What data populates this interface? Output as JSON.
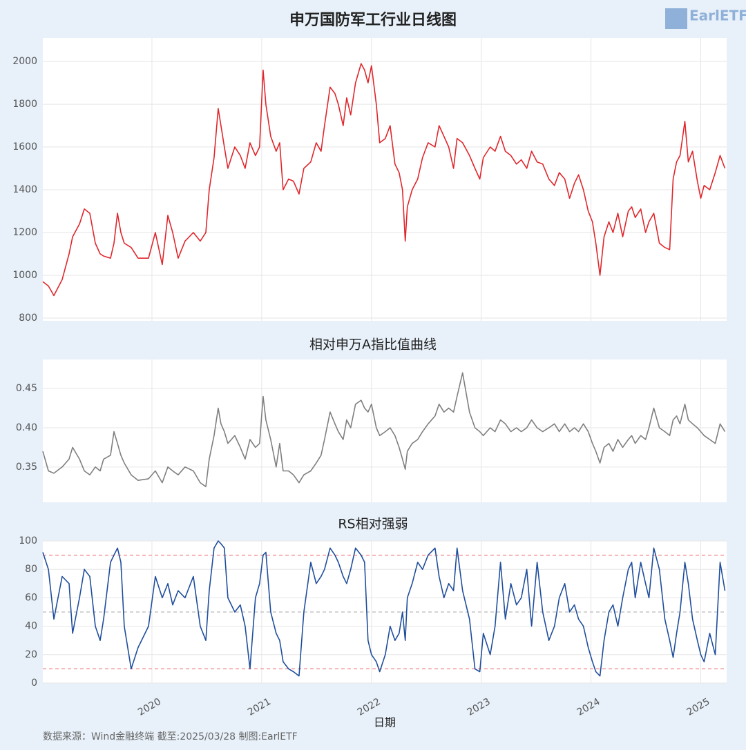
{
  "chart_data": [
    {
      "type": "line",
      "title": "申万国防军工行业日线图",
      "color": "#e0262b",
      "grid": true,
      "xlim": [
        2019.006,
        2025.236
      ],
      "xticks": [
        2020,
        2021,
        2022,
        2023,
        2024,
        2025
      ],
      "ylim": [
        787,
        2110
      ],
      "yticks": [
        800,
        1000,
        1200,
        1400,
        1600,
        1800,
        2000
      ],
      "x": [
        2019.006,
        2019.057,
        2019.107,
        2019.182,
        2019.245,
        2019.277,
        2019.34,
        2019.384,
        2019.434,
        2019.484,
        2019.528,
        2019.56,
        2019.623,
        2019.654,
        2019.686,
        2019.717,
        2019.748,
        2019.811,
        2019.874,
        2019.969,
        2020.031,
        2020.094,
        2020.145,
        2020.189,
        2020.239,
        2020.302,
        2020.377,
        2020.44,
        2020.491,
        2020.522,
        2020.566,
        2020.604,
        2020.629,
        2020.66,
        2020.692,
        2020.755,
        2020.805,
        2020.849,
        2020.893,
        2020.943,
        2020.981,
        2021.013,
        2021.038,
        2021.082,
        2021.132,
        2021.164,
        2021.195,
        2021.245,
        2021.289,
        2021.34,
        2021.384,
        2021.447,
        2021.497,
        2021.541,
        2021.572,
        2021.623,
        2021.667,
        2021.698,
        2021.742,
        2021.774,
        2021.811,
        2021.855,
        2021.906,
        2021.937,
        2021.969,
        2022.0,
        2022.044,
        2022.075,
        2022.126,
        2022.17,
        2022.214,
        2022.252,
        2022.283,
        2022.308,
        2022.327,
        2022.371,
        2022.421,
        2022.465,
        2022.516,
        2022.579,
        2022.616,
        2022.66,
        2022.704,
        2022.748,
        2022.78,
        2022.83,
        2022.893,
        2022.943,
        2022.987,
        2023.019,
        2023.082,
        2023.126,
        2023.176,
        2023.22,
        2023.27,
        2023.321,
        2023.365,
        2023.415,
        2023.459,
        2023.509,
        2023.56,
        2023.616,
        2023.667,
        2023.711,
        2023.761,
        2023.805,
        2023.849,
        2023.887,
        2023.931,
        2023.975,
        2024.013,
        2024.044,
        2024.082,
        2024.119,
        2024.163,
        2024.201,
        2024.245,
        2024.289,
        2024.34,
        2024.371,
        2024.403,
        2024.453,
        2024.497,
        2024.528,
        2024.572,
        2024.623,
        2024.673,
        2024.717,
        2024.748,
        2024.78,
        2024.811,
        2024.855,
        2024.887,
        2024.925,
        2024.969,
        2025.0,
        2025.031,
        2025.082,
        2025.132,
        2025.176,
        2025.22
      ],
      "values": [
        970,
        950,
        905,
        980,
        1100,
        1180,
        1240,
        1310,
        1290,
        1150,
        1100,
        1090,
        1080,
        1150,
        1290,
        1200,
        1150,
        1130,
        1080,
        1080,
        1200,
        1050,
        1280,
        1200,
        1080,
        1160,
        1200,
        1160,
        1200,
        1400,
        1550,
        1780,
        1700,
        1600,
        1500,
        1600,
        1560,
        1500,
        1620,
        1560,
        1600,
        1960,
        1800,
        1650,
        1580,
        1620,
        1400,
        1450,
        1440,
        1380,
        1500,
        1530,
        1620,
        1580,
        1700,
        1880,
        1850,
        1800,
        1700,
        1830,
        1750,
        1900,
        1990,
        1960,
        1900,
        1980,
        1800,
        1620,
        1640,
        1700,
        1520,
        1480,
        1400,
        1160,
        1320,
        1400,
        1450,
        1550,
        1620,
        1600,
        1700,
        1650,
        1600,
        1500,
        1640,
        1620,
        1560,
        1500,
        1450,
        1550,
        1600,
        1580,
        1650,
        1580,
        1560,
        1520,
        1540,
        1500,
        1580,
        1530,
        1520,
        1450,
        1420,
        1480,
        1450,
        1360,
        1430,
        1470,
        1400,
        1300,
        1250,
        1150,
        1000,
        1180,
        1250,
        1200,
        1290,
        1180,
        1300,
        1320,
        1270,
        1310,
        1200,
        1250,
        1290,
        1150,
        1130,
        1120,
        1450,
        1530,
        1560,
        1720,
        1530,
        1580,
        1440,
        1360,
        1420,
        1400,
        1480,
        1560,
        1500
      ]
    },
    {
      "type": "line",
      "title": "相对申万A指比值曲线",
      "color": "#7f7f7f",
      "grid": true,
      "xlim": [
        2019.006,
        2025.236
      ],
      "xticks": [
        2020,
        2021,
        2022,
        2023,
        2024,
        2025
      ],
      "ylim": [
        0.305,
        0.487
      ],
      "yticks": [
        0.35,
        {
          "value": 0.4,
          "label": "0.40"
        },
        0.45
      ],
      "x": [
        2019.006,
        2019.057,
        2019.107,
        2019.182,
        2019.245,
        2019.277,
        2019.34,
        2019.384,
        2019.434,
        2019.484,
        2019.528,
        2019.56,
        2019.623,
        2019.654,
        2019.686,
        2019.717,
        2019.748,
        2019.811,
        2019.874,
        2019.969,
        2020.031,
        2020.094,
        2020.145,
        2020.189,
        2020.239,
        2020.302,
        2020.377,
        2020.44,
        2020.491,
        2020.522,
        2020.566,
        2020.604,
        2020.629,
        2020.66,
        2020.692,
        2020.755,
        2020.805,
        2020.849,
        2020.893,
        2020.943,
        2020.981,
        2021.013,
        2021.038,
        2021.082,
        2021.132,
        2021.164,
        2021.195,
        2021.245,
        2021.289,
        2021.34,
        2021.384,
        2021.447,
        2021.497,
        2021.541,
        2021.572,
        2021.623,
        2021.667,
        2021.698,
        2021.742,
        2021.774,
        2021.811,
        2021.855,
        2021.906,
        2021.937,
        2021.969,
        2022.0,
        2022.044,
        2022.075,
        2022.126,
        2022.17,
        2022.214,
        2022.252,
        2022.283,
        2022.308,
        2022.327,
        2022.371,
        2022.421,
        2022.465,
        2022.516,
        2022.579,
        2022.616,
        2022.66,
        2022.704,
        2022.748,
        2022.78,
        2022.83,
        2022.893,
        2022.943,
        2022.987,
        2023.019,
        2023.082,
        2023.126,
        2023.176,
        2023.22,
        2023.27,
        2023.321,
        2023.365,
        2023.415,
        2023.459,
        2023.509,
        2023.56,
        2023.616,
        2023.667,
        2023.711,
        2023.761,
        2023.805,
        2023.849,
        2023.887,
        2023.931,
        2023.975,
        2024.013,
        2024.044,
        2024.082,
        2024.119,
        2024.163,
        2024.201,
        2024.245,
        2024.289,
        2024.34,
        2024.371,
        2024.403,
        2024.453,
        2024.497,
        2024.528,
        2024.572,
        2024.623,
        2024.673,
        2024.717,
        2024.748,
        2024.78,
        2024.811,
        2024.855,
        2024.887,
        2024.925,
        2024.969,
        2025.0,
        2025.031,
        2025.082,
        2025.132,
        2025.176,
        2025.22
      ],
      "values": [
        0.37,
        0.345,
        0.342,
        0.35,
        0.36,
        0.375,
        0.36,
        0.345,
        0.34,
        0.35,
        0.345,
        0.36,
        0.365,
        0.395,
        0.38,
        0.365,
        0.355,
        0.34,
        0.333,
        0.335,
        0.345,
        0.33,
        0.35,
        0.345,
        0.34,
        0.35,
        0.345,
        0.33,
        0.325,
        0.36,
        0.39,
        0.425,
        0.405,
        0.395,
        0.38,
        0.39,
        0.375,
        0.36,
        0.385,
        0.375,
        0.38,
        0.44,
        0.41,
        0.385,
        0.35,
        0.38,
        0.345,
        0.345,
        0.34,
        0.33,
        0.34,
        0.345,
        0.355,
        0.365,
        0.385,
        0.42,
        0.405,
        0.395,
        0.385,
        0.41,
        0.4,
        0.43,
        0.435,
        0.425,
        0.42,
        0.43,
        0.4,
        0.39,
        0.395,
        0.4,
        0.39,
        0.375,
        0.36,
        0.347,
        0.37,
        0.38,
        0.385,
        0.395,
        0.405,
        0.415,
        0.43,
        0.42,
        0.425,
        0.42,
        0.44,
        0.47,
        0.42,
        0.4,
        0.395,
        0.39,
        0.4,
        0.395,
        0.41,
        0.405,
        0.395,
        0.4,
        0.395,
        0.4,
        0.41,
        0.4,
        0.395,
        0.4,
        0.405,
        0.395,
        0.405,
        0.395,
        0.4,
        0.395,
        0.405,
        0.395,
        0.38,
        0.37,
        0.355,
        0.375,
        0.38,
        0.37,
        0.385,
        0.375,
        0.385,
        0.39,
        0.38,
        0.39,
        0.385,
        0.4,
        0.425,
        0.4,
        0.395,
        0.39,
        0.41,
        0.415,
        0.405,
        0.43,
        0.41,
        0.405,
        0.4,
        0.395,
        0.39,
        0.385,
        0.38,
        0.405,
        0.395
      ]
    },
    {
      "type": "line",
      "title": "RS相对强弱",
      "color": "#1f4e9c",
      "grid": true,
      "x_label": "日期",
      "xlim": [
        2019.006,
        2025.236
      ],
      "xticks": [
        2020,
        2021,
        2022,
        2023,
        2024,
        2025
      ],
      "ylim": [
        0,
        100
      ],
      "yticks": [
        0,
        20,
        40,
        60,
        80,
        100
      ],
      "hlines": [
        {
          "value": 90,
          "color": "#f08080"
        },
        {
          "value": 50,
          "color": "#bbbbbb"
        },
        {
          "value": 10,
          "color": "#f08080"
        }
      ],
      "x": [
        2019.006,
        2019.057,
        2019.107,
        2019.182,
        2019.245,
        2019.277,
        2019.34,
        2019.384,
        2019.434,
        2019.484,
        2019.528,
        2019.56,
        2019.623,
        2019.654,
        2019.686,
        2019.717,
        2019.748,
        2019.811,
        2019.874,
        2019.969,
        2020.031,
        2020.094,
        2020.145,
        2020.189,
        2020.239,
        2020.302,
        2020.377,
        2020.44,
        2020.491,
        2020.522,
        2020.566,
        2020.604,
        2020.629,
        2020.66,
        2020.692,
        2020.755,
        2020.805,
        2020.849,
        2020.893,
        2020.943,
        2020.981,
        2021.013,
        2021.038,
        2021.082,
        2021.132,
        2021.164,
        2021.195,
        2021.245,
        2021.289,
        2021.34,
        2021.384,
        2021.447,
        2021.497,
        2021.541,
        2021.572,
        2021.623,
        2021.667,
        2021.698,
        2021.742,
        2021.774,
        2021.811,
        2021.855,
        2021.906,
        2021.937,
        2021.969,
        2022.0,
        2022.044,
        2022.075,
        2022.126,
        2022.17,
        2022.214,
        2022.252,
        2022.283,
        2022.308,
        2022.327,
        2022.371,
        2022.421,
        2022.465,
        2022.516,
        2022.579,
        2022.616,
        2022.66,
        2022.704,
        2022.748,
        2022.78,
        2022.83,
        2022.893,
        2022.943,
        2022.987,
        2023.019,
        2023.082,
        2023.126,
        2023.176,
        2023.22,
        2023.27,
        2023.321,
        2023.365,
        2023.415,
        2023.459,
        2023.509,
        2023.56,
        2023.616,
        2023.667,
        2023.711,
        2023.761,
        2023.805,
        2023.849,
        2023.887,
        2023.931,
        2023.975,
        2024.013,
        2024.044,
        2024.082,
        2024.119,
        2024.163,
        2024.201,
        2024.245,
        2024.289,
        2024.34,
        2024.371,
        2024.403,
        2024.453,
        2024.497,
        2024.528,
        2024.572,
        2024.623,
        2024.673,
        2024.717,
        2024.748,
        2024.78,
        2024.811,
        2024.855,
        2024.887,
        2024.925,
        2024.969,
        2025.0,
        2025.031,
        2025.082,
        2025.132,
        2025.176,
        2025.22
      ],
      "values": [
        92,
        80,
        45,
        75,
        70,
        35,
        60,
        80,
        75,
        40,
        30,
        45,
        85,
        90,
        95,
        85,
        40,
        10,
        25,
        40,
        75,
        60,
        70,
        55,
        65,
        60,
        75,
        40,
        30,
        65,
        95,
        100,
        98,
        95,
        60,
        50,
        55,
        40,
        10,
        60,
        70,
        90,
        92,
        50,
        35,
        30,
        15,
        10,
        8,
        5,
        50,
        85,
        70,
        75,
        80,
        95,
        90,
        85,
        75,
        70,
        80,
        95,
        90,
        85,
        30,
        20,
        15,
        8,
        20,
        40,
        30,
        35,
        50,
        30,
        60,
        70,
        85,
        80,
        90,
        95,
        75,
        60,
        70,
        65,
        95,
        65,
        45,
        10,
        8,
        35,
        20,
        40,
        85,
        45,
        70,
        55,
        60,
        80,
        40,
        85,
        50,
        30,
        40,
        60,
        70,
        50,
        55,
        45,
        40,
        25,
        15,
        8,
        5,
        30,
        50,
        55,
        40,
        60,
        80,
        85,
        60,
        85,
        70,
        60,
        95,
        80,
        45,
        30,
        18,
        35,
        50,
        85,
        70,
        45,
        30,
        20,
        15,
        35,
        20,
        85,
        65
      ]
    }
  ],
  "logo": "EarlETF",
  "source": "数据来源：Wind金融终端 截至:2025/03/28 制图:EarlETF"
}
